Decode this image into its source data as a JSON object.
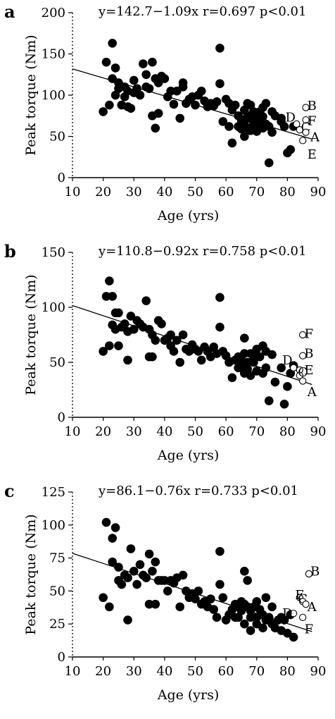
{
  "chart_data": [
    {
      "type": "scatter",
      "panel_label": "a",
      "equation": "y=142.7−1.09x  r=0.697  p<0.01",
      "xlabel": "Age  (yrs)",
      "ylabel": "Peak torque (Nm)",
      "xlim": [
        10,
        90
      ],
      "ylim": [
        0,
        200
      ],
      "xticks": [
        10,
        20,
        30,
        40,
        50,
        60,
        70,
        80,
        90
      ],
      "yticks": [
        0,
        50,
        100,
        150,
        200
      ],
      "regression": {
        "intercept": 142.7,
        "slope": -1.09
      },
      "points": [
        [
          20,
          80
        ],
        [
          21,
          140
        ],
        [
          22,
          88
        ],
        [
          23,
          163
        ],
        [
          23,
          120
        ],
        [
          24,
          100
        ],
        [
          24,
          133
        ],
        [
          25,
          115
        ],
        [
          25,
          108
        ],
        [
          26,
          88
        ],
        [
          27,
          98
        ],
        [
          27,
          110
        ],
        [
          28,
          105
        ],
        [
          28,
          86
        ],
        [
          29,
          84
        ],
        [
          30,
          118
        ],
        [
          30,
          103
        ],
        [
          31,
          108
        ],
        [
          32,
          100
        ],
        [
          33,
          138
        ],
        [
          34,
          110
        ],
        [
          34,
          125
        ],
        [
          35,
          108
        ],
        [
          36,
          140
        ],
        [
          36,
          75
        ],
        [
          37,
          120
        ],
        [
          37,
          60
        ],
        [
          38,
          78
        ],
        [
          38,
          115
        ],
        [
          39,
          123
        ],
        [
          40,
          120
        ],
        [
          41,
          98
        ],
        [
          42,
          105
        ],
        [
          43,
          89
        ],
        [
          44,
          105
        ],
        [
          45,
          72
        ],
        [
          46,
          115
        ],
        [
          46,
          110
        ],
        [
          47,
          90
        ],
        [
          48,
          95
        ],
        [
          49,
          98
        ],
        [
          50,
          88
        ],
        [
          51,
          100
        ],
        [
          52,
          105
        ],
        [
          53,
          93
        ],
        [
          54,
          86
        ],
        [
          55,
          90
        ],
        [
          56,
          87
        ],
        [
          57,
          92
        ],
        [
          58,
          157
        ],
        [
          58,
          114
        ],
        [
          59,
          68
        ],
        [
          60,
          95
        ],
        [
          61,
          90
        ],
        [
          61,
          62
        ],
        [
          62,
          42
        ],
        [
          62,
          82
        ],
        [
          63,
          88
        ],
        [
          64,
          75
        ],
        [
          64,
          62
        ],
        [
          65,
          70
        ],
        [
          65,
          59
        ],
        [
          66,
          82
        ],
        [
          66,
          65
        ],
        [
          66,
          50
        ],
        [
          67,
          90
        ],
        [
          67,
          75
        ],
        [
          67,
          60
        ],
        [
          68,
          57
        ],
        [
          68,
          88
        ],
        [
          68,
          72
        ],
        [
          69,
          66
        ],
        [
          69,
          80
        ],
        [
          70,
          63
        ],
        [
          70,
          73
        ],
        [
          70,
          56
        ],
        [
          71,
          80
        ],
        [
          71,
          68
        ],
        [
          72,
          85
        ],
        [
          72,
          60
        ],
        [
          72,
          74
        ],
        [
          73,
          90
        ],
        [
          73,
          65
        ],
        [
          74,
          62
        ],
        [
          74,
          18
        ],
        [
          75,
          55
        ],
        [
          75,
          80
        ],
        [
          76,
          75
        ],
        [
          78,
          72
        ],
        [
          78,
          68
        ],
        [
          79,
          62
        ],
        [
          80,
          30
        ],
        [
          81,
          34
        ],
        [
          82,
          62
        ]
      ],
      "annotations": [
        {
          "text": "B",
          "x": 86,
          "y": 85,
          "label_x": 88,
          "label_y": 87
        },
        {
          "text": "F",
          "x": 86,
          "y": 70,
          "label_x": 88,
          "label_y": 69
        },
        {
          "text": "D",
          "x": 83,
          "y": 65,
          "label_x": 81,
          "label_y": 73
        },
        {
          "text": "C",
          "x": 84,
          "y": 58,
          "label_x": 86,
          "label_y": 61
        },
        {
          "text": "A",
          "x": 86,
          "y": 55,
          "label_x": 89,
          "label_y": 49
        },
        {
          "text": "E",
          "x": 85,
          "y": 45,
          "label_x": 88,
          "label_y": 28
        }
      ]
    },
    {
      "type": "scatter",
      "panel_label": "b",
      "equation": "y=110.8−0.92x  r=0.758  p<0.01",
      "xlabel": "Age  (yrs)",
      "ylabel": "Peak torque (Nm)",
      "xlim": [
        10,
        90
      ],
      "ylim": [
        0,
        150
      ],
      "xticks": [
        10,
        20,
        30,
        40,
        50,
        60,
        70,
        80,
        90
      ],
      "yticks": [
        0,
        50,
        100,
        150
      ],
      "regression": {
        "intercept": 110.8,
        "slope": -0.92
      },
      "points": [
        [
          20,
          60
        ],
        [
          21,
          110
        ],
        [
          22,
          65
        ],
        [
          22,
          124
        ],
        [
          23,
          110
        ],
        [
          23,
          84
        ],
        [
          24,
          95
        ],
        [
          24,
          80
        ],
        [
          25,
          65
        ],
        [
          25,
          95
        ],
        [
          26,
          82
        ],
        [
          27,
          85
        ],
        [
          28,
          52
        ],
        [
          28,
          78
        ],
        [
          29,
          92
        ],
        [
          30,
          80
        ],
        [
          31,
          88
        ],
        [
          32,
          85
        ],
        [
          33,
          82
        ],
        [
          34,
          106
        ],
        [
          35,
          55
        ],
        [
          35,
          80
        ],
        [
          36,
          75
        ],
        [
          36,
          55
        ],
        [
          37,
          70
        ],
        [
          38,
          88
        ],
        [
          39,
          85
        ],
        [
          40,
          70
        ],
        [
          41,
          72
        ],
        [
          42,
          75
        ],
        [
          42,
          65
        ],
        [
          43,
          60
        ],
        [
          44,
          70
        ],
        [
          45,
          50
        ],
        [
          46,
          75
        ],
        [
          47,
          62
        ],
        [
          48,
          60
        ],
        [
          49,
          66
        ],
        [
          50,
          62
        ],
        [
          51,
          60
        ],
        [
          52,
          52
        ],
        [
          53,
          64
        ],
        [
          54,
          60
        ],
        [
          55,
          55
        ],
        [
          56,
          64
        ],
        [
          57,
          58
        ],
        [
          58,
          109
        ],
        [
          58,
          82
        ],
        [
          59,
          60
        ],
        [
          60,
          56
        ],
        [
          61,
          50
        ],
        [
          62,
          36
        ],
        [
          63,
          52
        ],
        [
          64,
          55
        ],
        [
          64,
          45
        ],
        [
          65,
          45
        ],
        [
          65,
          52
        ],
        [
          66,
          72
        ],
        [
          66,
          58
        ],
        [
          66,
          40
        ],
        [
          67,
          50
        ],
        [
          67,
          44
        ],
        [
          68,
          58
        ],
        [
          68,
          38
        ],
        [
          69,
          55
        ],
        [
          69,
          50
        ],
        [
          70,
          42
        ],
        [
          70,
          62
        ],
        [
          71,
          55
        ],
        [
          72,
          65
        ],
        [
          72,
          40
        ],
        [
          73,
          60
        ],
        [
          73,
          45
        ],
        [
          74,
          15
        ],
        [
          75,
          57
        ],
        [
          76,
          32
        ],
        [
          78,
          45
        ],
        [
          79,
          12
        ],
        [
          80,
          28
        ],
        [
          81,
          40
        ],
        [
          82,
          47
        ]
      ],
      "annotations": [
        {
          "text": "F",
          "x": 85,
          "y": 75,
          "label_x": 87,
          "label_y": 76
        },
        {
          "text": "B",
          "x": 85,
          "y": 56,
          "label_x": 87,
          "label_y": 58
        },
        {
          "text": "D",
          "x": 82,
          "y": 45,
          "label_x": 80,
          "label_y": 52
        },
        {
          "text": "E",
          "x": 84,
          "y": 43,
          "label_x": 87,
          "label_y": 43
        },
        {
          "text": "C",
          "x": 84,
          "y": 38,
          "label_x": 85,
          "label_y": 41
        },
        {
          "text": "A",
          "x": 85,
          "y": 33,
          "label_x": 88,
          "label_y": 23
        }
      ]
    },
    {
      "type": "scatter",
      "panel_label": "c",
      "equation": "y=86.1−0.76x  r=0.733  p<0.01",
      "xlabel": "Age  (yrs)",
      "ylabel": "Peak torque (Nm)",
      "xlim": [
        10,
        90
      ],
      "ylim": [
        0,
        125
      ],
      "xticks": [
        10,
        20,
        30,
        40,
        50,
        60,
        70,
        80,
        90
      ],
      "yticks": [
        0,
        25,
        50,
        75,
        100,
        125
      ],
      "regression": {
        "intercept": 86.1,
        "slope": -0.76
      },
      "points": [
        [
          20,
          45
        ],
        [
          21,
          102
        ],
        [
          22,
          38
        ],
        [
          23,
          90
        ],
        [
          23,
          72
        ],
        [
          24,
          98
        ],
        [
          25,
          58
        ],
        [
          25,
          68
        ],
        [
          26,
          55
        ],
        [
          27,
          62
        ],
        [
          28,
          28
        ],
        [
          28,
          60
        ],
        [
          29,
          82
        ],
        [
          30,
          65
        ],
        [
          31,
          55
        ],
        [
          32,
          70
        ],
        [
          33,
          62
        ],
        [
          34,
          60
        ],
        [
          35,
          78
        ],
        [
          35,
          40
        ],
        [
          36,
          65
        ],
        [
          37,
          72
        ],
        [
          37,
          40
        ],
        [
          38,
          58
        ],
        [
          39,
          58
        ],
        [
          40,
          58
        ],
        [
          41,
          50
        ],
        [
          42,
          58
        ],
        [
          43,
          56
        ],
        [
          44,
          60
        ],
        [
          45,
          38
        ],
        [
          46,
          62
        ],
        [
          47,
          50
        ],
        [
          48,
          45
        ],
        [
          49,
          48
        ],
        [
          50,
          44
        ],
        [
          51,
          50
        ],
        [
          52,
          40
        ],
        [
          53,
          42
        ],
        [
          54,
          38
        ],
        [
          55,
          44
        ],
        [
          56,
          36
        ],
        [
          57,
          30
        ],
        [
          58,
          80
        ],
        [
          58,
          55
        ],
        [
          59,
          45
        ],
        [
          60,
          28
        ],
        [
          61,
          32
        ],
        [
          62,
          36
        ],
        [
          63,
          40
        ],
        [
          63,
          30
        ],
        [
          64,
          38
        ],
        [
          64,
          30
        ],
        [
          65,
          35
        ],
        [
          65,
          42
        ],
        [
          66,
          25
        ],
        [
          66,
          65
        ],
        [
          66,
          40
        ],
        [
          67,
          38
        ],
        [
          67,
          58
        ],
        [
          68,
          30
        ],
        [
          68,
          35
        ],
        [
          68,
          20
        ],
        [
          69,
          38
        ],
        [
          70,
          30
        ],
        [
          70,
          42
        ],
        [
          70,
          25
        ],
        [
          71,
          36
        ],
        [
          72,
          22
        ],
        [
          72,
          32
        ],
        [
          73,
          28
        ],
        [
          73,
          45
        ],
        [
          74,
          30
        ],
        [
          75,
          25
        ],
        [
          75,
          38
        ],
        [
          76,
          22
        ],
        [
          77,
          28
        ],
        [
          78,
          20
        ],
        [
          78,
          30
        ],
        [
          79,
          28
        ],
        [
          80,
          18
        ],
        [
          81,
          32
        ],
        [
          82,
          15
        ]
      ],
      "annotations": [
        {
          "text": "B",
          "x": 87,
          "y": 63,
          "label_x": 89,
          "label_y": 65
        },
        {
          "text": "E",
          "x": 84,
          "y": 45,
          "label_x": 84,
          "label_y": 47
        },
        {
          "text": "C",
          "x": 85,
          "y": 42,
          "label_x": 85,
          "label_y": 44
        },
        {
          "text": "A",
          "x": 86,
          "y": 40,
          "label_x": 88,
          "label_y": 38
        },
        {
          "text": "D",
          "x": 82,
          "y": 33,
          "label_x": 80,
          "label_y": 33
        },
        {
          "text": "F",
          "x": 85,
          "y": 30,
          "label_x": 87,
          "label_y": 21
        }
      ]
    }
  ]
}
